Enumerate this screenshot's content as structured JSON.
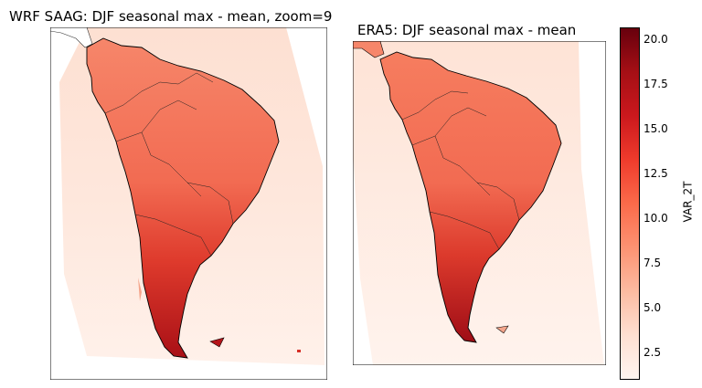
{
  "left_panel": {
    "title": "WRF SAAG: DJF seasonal max - mean, zoom=9"
  },
  "right_panel": {
    "title": "ERA5: DJF seasonal max - mean"
  },
  "colorbar": {
    "label": "VAR_2T",
    "ticks": [
      "2.5",
      "5.0",
      "7.5",
      "10.0",
      "12.5",
      "15.0",
      "17.5",
      "20.0"
    ],
    "min": 1.0,
    "max": 20.7,
    "colormap": "Reds"
  },
  "colors": {
    "low": "#fff5f0",
    "mid": "#fb6a4a",
    "high": "#67000d",
    "coast": "#000000"
  }
}
